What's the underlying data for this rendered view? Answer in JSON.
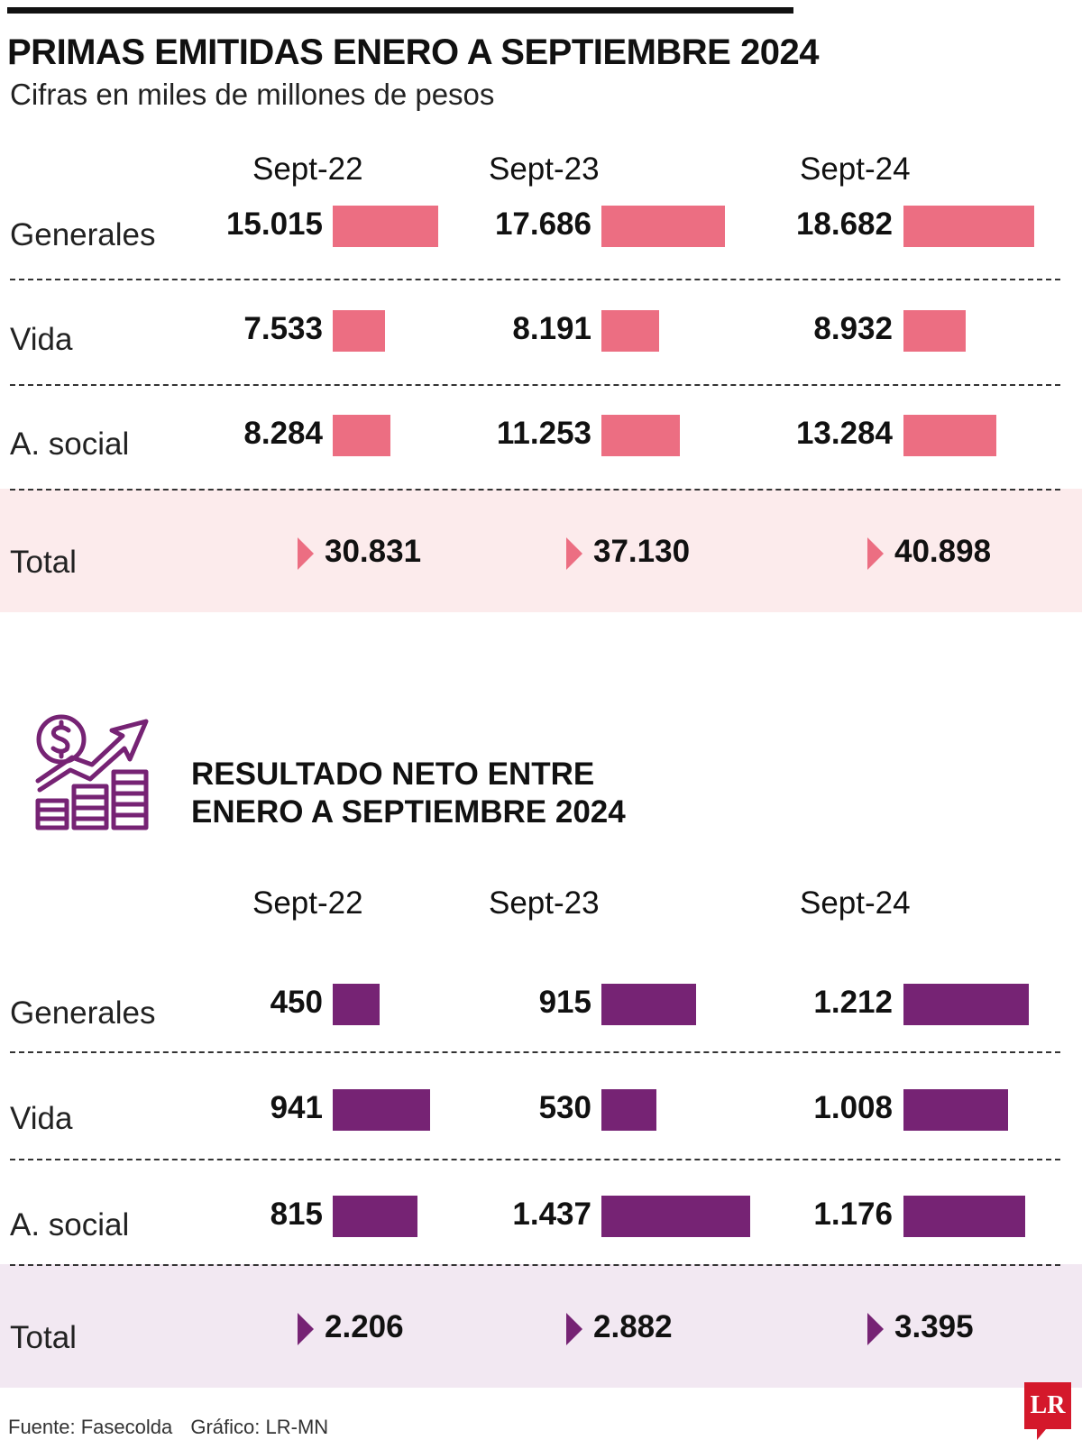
{
  "colors": {
    "pink": "#ec6e82",
    "pink_band": "#fcebec",
    "purple": "#762374",
    "purple_band": "#f2e8f2"
  },
  "icon": "finance-growth-icon",
  "footer": {
    "source": "Fuente: Fasecolda",
    "graphic": "Gráfico: LR-MN"
  },
  "logo": "LR",
  "chart_data": [
    {
      "type": "bar",
      "title": "PRIMAS EMITIDAS ENERO A SEPTIEMBRE 2024",
      "subtitle": "Cifras en miles de millones de pesos",
      "columns": [
        "Sept-22",
        "Sept-23",
        "Sept-24"
      ],
      "rows": [
        {
          "label": "Generales",
          "values": [
            15015,
            17686,
            18682
          ],
          "display": [
            "15.015",
            "17.686",
            "18.682"
          ]
        },
        {
          "label": "Vida",
          "values": [
            7533,
            8191,
            8932
          ],
          "display": [
            "7.533",
            "8.191",
            "8.932"
          ]
        },
        {
          "label": "A. social",
          "values": [
            8284,
            11253,
            13284
          ],
          "display": [
            "8.284",
            "11.253",
            "13.284"
          ]
        }
      ],
      "total": {
        "label": "Total",
        "values": [
          30831,
          37130,
          40898
        ],
        "display": [
          "30.831",
          "37.130",
          "40.898"
        ]
      }
    },
    {
      "type": "bar",
      "title": "RESULTADO NETO ENTRE ENERO A SEPTIEMBRE 2024",
      "title_lines": [
        "RESULTADO NETO ENTRE",
        "ENERO A SEPTIEMBRE 2024"
      ],
      "columns": [
        "Sept-22",
        "Sept-23",
        "Sept-24"
      ],
      "rows": [
        {
          "label": "Generales",
          "values": [
            450,
            915,
            1212
          ],
          "display": [
            "450",
            "915",
            "1.212"
          ]
        },
        {
          "label": "Vida",
          "values": [
            941,
            530,
            1008
          ],
          "display": [
            "941",
            "530",
            "1.008"
          ]
        },
        {
          "label": "A. social",
          "values": [
            815,
            1437,
            1176
          ],
          "display": [
            "815",
            "1.437",
            "1.176"
          ]
        }
      ],
      "total": {
        "label": "Total",
        "values": [
          2206,
          2882,
          3395
        ],
        "display": [
          "2.206",
          "2.882",
          "3.395"
        ]
      }
    }
  ]
}
